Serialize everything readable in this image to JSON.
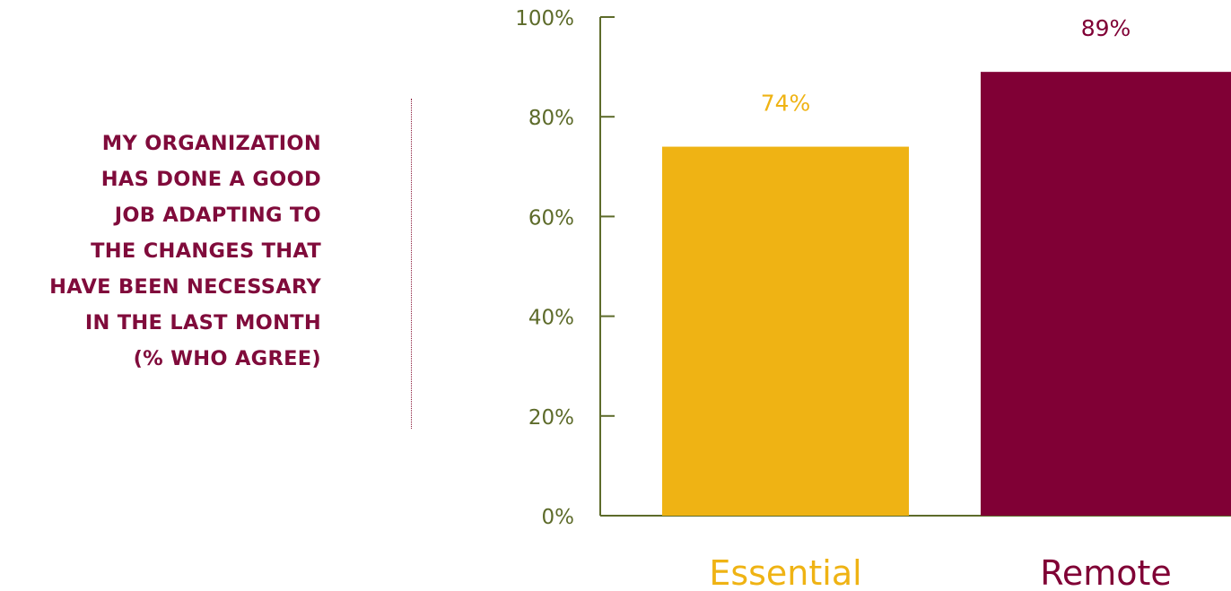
{
  "title_lines": [
    "MY ORGANIZATION",
    "HAS DONE A GOOD",
    "JOB ADAPTING TO",
    "THE CHANGES  THAT",
    "HAVE BEEN NECESSARY",
    "IN THE LAST MONTH",
    "(% WHO AGREE)"
  ],
  "colors": {
    "title": "#800b3b",
    "axis": "#5d6b2a",
    "essential": "#efb314",
    "remote": "#800035",
    "tick_label": "#5d6b2a"
  },
  "chart_data": {
    "type": "bar",
    "title": "MY ORGANIZATION HAS DONE A GOOD JOB ADAPTING TO THE CHANGES  THAT HAVE BEEN NECESSARY IN THE LAST MONTH (% WHO AGREE)",
    "categories": [
      "Essential",
      "Remote"
    ],
    "values": [
      74,
      89
    ],
    "value_labels": [
      "74%",
      "89%"
    ],
    "bar_colors": [
      "#efb314",
      "#800035"
    ],
    "ylim": [
      0,
      100
    ],
    "yticks": [
      0,
      20,
      40,
      60,
      80,
      100
    ],
    "ytick_labels": [
      "0%",
      "20%",
      "40%",
      "60%",
      "80%",
      "100%"
    ],
    "xlabel": "",
    "ylabel": "",
    "grid": false,
    "legend": "none"
  }
}
